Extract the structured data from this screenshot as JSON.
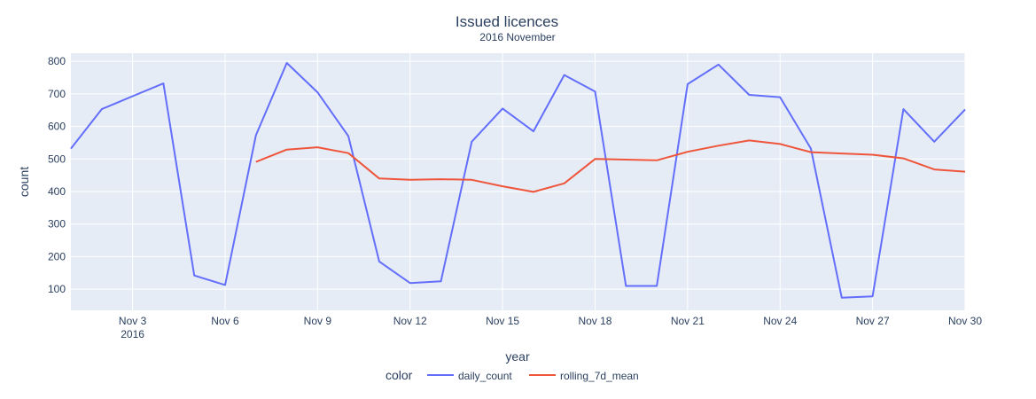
{
  "chart_data": {
    "type": "line",
    "title": "Issued licences",
    "subtitle": "2016 November",
    "xlabel": "year",
    "ylabel": "count",
    "x": [
      1,
      2,
      3,
      4,
      5,
      6,
      7,
      8,
      9,
      10,
      11,
      12,
      13,
      14,
      15,
      16,
      17,
      18,
      19,
      20,
      21,
      22,
      23,
      24,
      25,
      26,
      27,
      28,
      29,
      30
    ],
    "xlim": [
      1,
      30
    ],
    "ylim": [
      35,
      825
    ],
    "x_ticks": [
      {
        "day": 3,
        "label": "Nov 3",
        "sublabel": "2016"
      },
      {
        "day": 6,
        "label": "Nov 6"
      },
      {
        "day": 9,
        "label": "Nov 9"
      },
      {
        "day": 12,
        "label": "Nov 12"
      },
      {
        "day": 15,
        "label": "Nov 15"
      },
      {
        "day": 18,
        "label": "Nov 18"
      },
      {
        "day": 21,
        "label": "Nov 21"
      },
      {
        "day": 24,
        "label": "Nov 24"
      },
      {
        "day": 27,
        "label": "Nov 27"
      },
      {
        "day": 30,
        "label": "Nov 30"
      }
    ],
    "y_ticks": [
      100,
      200,
      300,
      400,
      500,
      600,
      700,
      800
    ],
    "grid": true,
    "legend": {
      "title": "color",
      "position": "bottom-center"
    },
    "series": [
      {
        "name": "daily_count",
        "color": "#636efa",
        "values": [
          532,
          653,
          693,
          732,
          142,
          113,
          573,
          795,
          705,
          570,
          185,
          119,
          124,
          553,
          655,
          585,
          758,
          707,
          110,
          110,
          730,
          790,
          697,
          690,
          532,
          74,
          78,
          653,
          553,
          652
        ]
      },
      {
        "name": "rolling_7d_mean",
        "color": "#ef553b",
        "values": [
          null,
          null,
          null,
          null,
          null,
          null,
          491,
          529,
          536,
          518,
          440,
          436,
          438,
          436,
          416,
          399,
          425,
          500,
          498,
          496,
          522,
          541,
          557,
          546,
          521,
          517,
          513,
          502,
          468,
          461
        ]
      }
    ]
  }
}
